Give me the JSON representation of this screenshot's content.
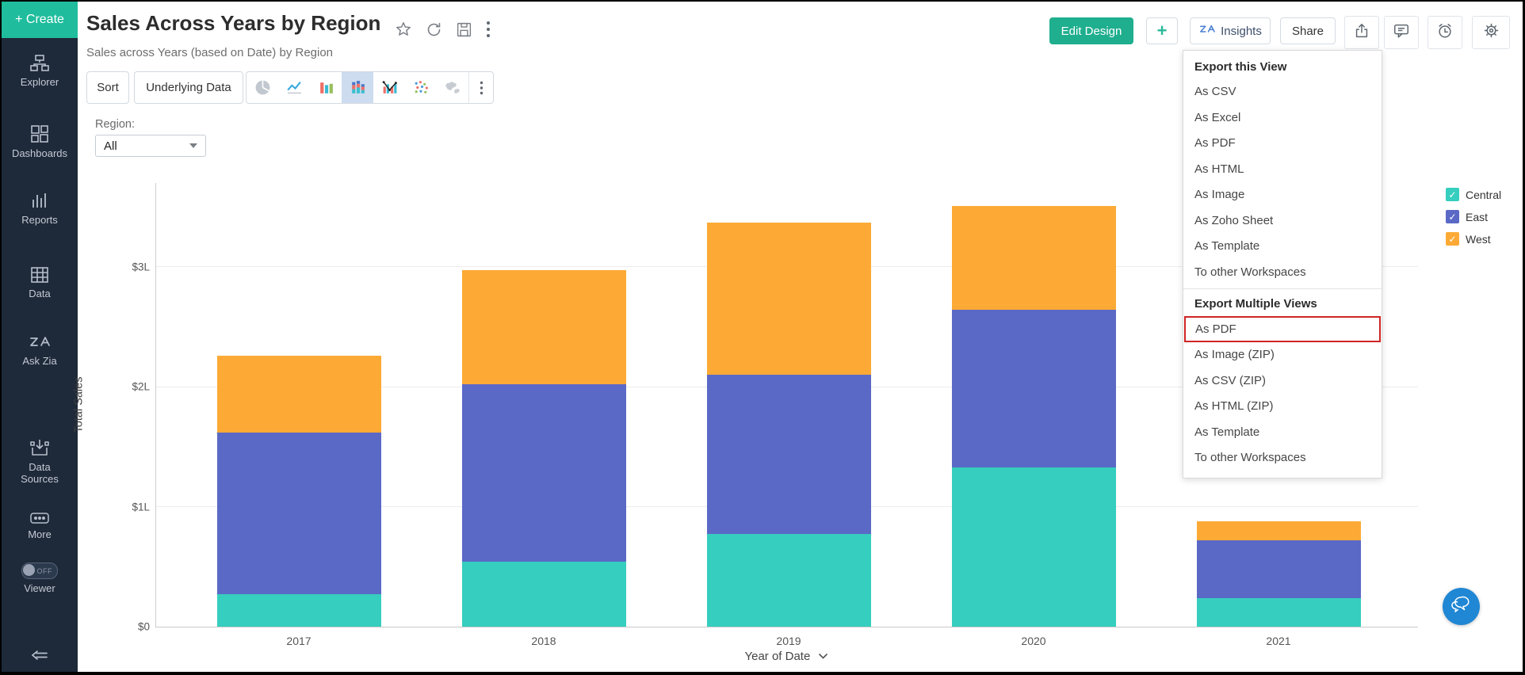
{
  "sidebar": {
    "create_label": "+ Create",
    "items": [
      {
        "label": "Explorer",
        "icon": "hierarchy-icon"
      },
      {
        "label": "Dashboards",
        "icon": "grid-icon"
      },
      {
        "label": "Reports",
        "icon": "bars-icon"
      },
      {
        "label": "Data",
        "icon": "table-icon"
      },
      {
        "label": "Ask Zia",
        "icon": "zia-icon"
      },
      {
        "label": "Data Sources",
        "icon": "import-icon"
      },
      {
        "label": "More",
        "icon": "ellipsis-icon"
      }
    ],
    "viewer": {
      "label": "Viewer",
      "toggle_state": "OFF"
    }
  },
  "header": {
    "title": "Sales Across Years by Region",
    "subtitle": "Sales across Years (based on Date) by Region"
  },
  "actions": {
    "edit_design": "Edit Design",
    "add": "+",
    "insights": "Insights",
    "share": "Share"
  },
  "toolbar": {
    "sort": "Sort",
    "underlying_data": "Underlying Data",
    "chart_types": [
      "pie",
      "line",
      "bar",
      "stacked-bar",
      "combo",
      "scatter",
      "map"
    ]
  },
  "filter": {
    "label": "Region:",
    "value": "All"
  },
  "export_menu": {
    "section1": {
      "title": "Export this View",
      "items": [
        "As CSV",
        "As Excel",
        "As PDF",
        "As HTML",
        "As Image",
        "As Zoho Sheet",
        "As Template",
        "To other Workspaces"
      ]
    },
    "section2": {
      "title": "Export Multiple Views",
      "items": [
        "As PDF",
        "As Image (ZIP)",
        "As CSV (ZIP)",
        "As HTML (ZIP)",
        "As Template",
        "To other Workspaces"
      ],
      "highlighted_item": "As PDF",
      "highlight_color": "#cf2525"
    }
  },
  "legend": {
    "items": [
      {
        "label": "Central",
        "color": "#36cebe",
        "checked": true
      },
      {
        "label": "East",
        "color": "#5a69c6",
        "checked": true
      },
      {
        "label": "West",
        "color": "#fcaa35",
        "checked": true
      }
    ]
  },
  "chart_data": {
    "type": "bar",
    "stacked": true,
    "categories": [
      "2017",
      "2018",
      "2019",
      "2020",
      "2021"
    ],
    "series": [
      {
        "name": "Central",
        "color": "#36cebe",
        "values": [
          0.27,
          0.54,
          0.77,
          1.33,
          0.24
        ]
      },
      {
        "name": "East",
        "color": "#5a69c6",
        "values": [
          1.35,
          1.48,
          1.33,
          1.31,
          0.48
        ]
      },
      {
        "name": "West",
        "color": "#fcaa35",
        "values": [
          0.64,
          0.95,
          1.27,
          0.87,
          0.16
        ]
      }
    ],
    "totals": [
      2.26,
      2.97,
      3.37,
      3.51,
      0.88
    ],
    "unit": "lakh (L)",
    "ylabel": "Total Sales",
    "xlabel": "Year of Date",
    "yticks": [
      {
        "value": 0,
        "label": "$0"
      },
      {
        "value": 1,
        "label": "$1L"
      },
      {
        "value": 2,
        "label": "$2L"
      },
      {
        "value": 3,
        "label": "$3L"
      }
    ],
    "ylim": [
      0,
      3.7
    ],
    "grid": true,
    "legend_position": "right"
  }
}
